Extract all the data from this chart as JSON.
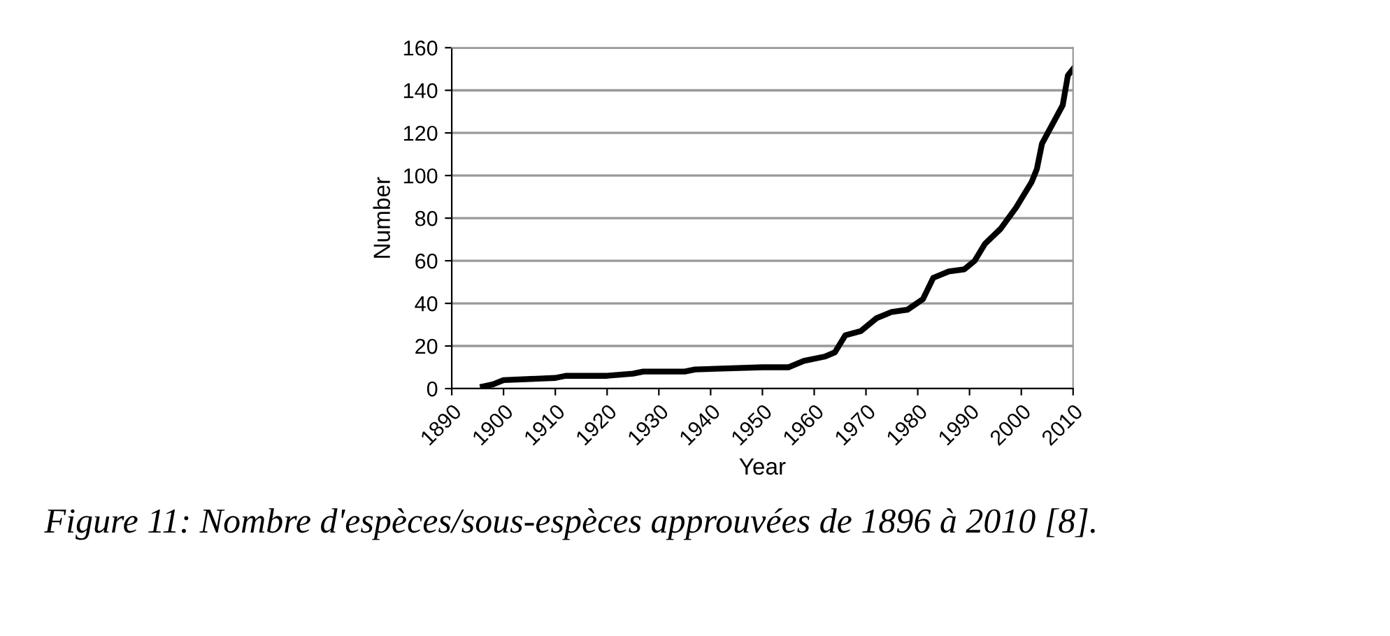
{
  "chart_data": {
    "type": "line",
    "xlabel": "Year",
    "ylabel": "Number",
    "x": [
      1896,
      1898,
      1900,
      1910,
      1912,
      1920,
      1925,
      1927,
      1935,
      1937,
      1950,
      1955,
      1958,
      1962,
      1964,
      1966,
      1969,
      1972,
      1975,
      1978,
      1981,
      1983,
      1986,
      1989,
      1991,
      1993,
      1996,
      1999,
      2002,
      2003,
      2004,
      2006,
      2008,
      2009,
      2010
    ],
    "series": [
      {
        "color": "#000000",
        "values": [
          1,
          2,
          4,
          5,
          6,
          6,
          7,
          8,
          8,
          9,
          10,
          10,
          13,
          15,
          17,
          25,
          27,
          33,
          36,
          37,
          42,
          52,
          55,
          56,
          60,
          68,
          75,
          85,
          97,
          103,
          115,
          124,
          133,
          147,
          150
        ]
      }
    ],
    "xlim": [
      1890,
      2010
    ],
    "xticks": [
      1890,
      1900,
      1910,
      1920,
      1930,
      1940,
      1950,
      1960,
      1970,
      1980,
      1990,
      2000,
      2010
    ],
    "ylim": [
      0,
      160
    ],
    "yticks": [
      0,
      20,
      40,
      60,
      80,
      100,
      120,
      140,
      160
    ],
    "grid": "y",
    "marker": "none",
    "line_style": "solid",
    "annotations": [
      "Figure 11: Nombre d'espèces/sous-espèces approuvées de 1896 à 2010 [8]."
    ]
  }
}
